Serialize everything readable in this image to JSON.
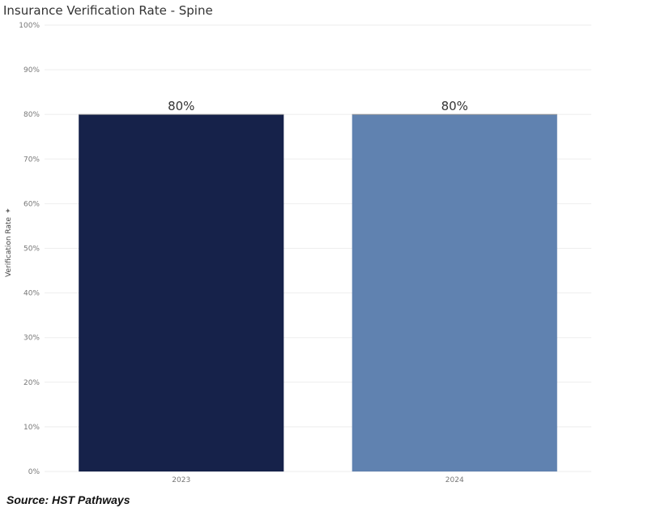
{
  "chart_data": {
    "type": "bar",
    "title": "Insurance Verification Rate - Spine",
    "xlabel": "",
    "ylabel": "Verification Rate",
    "categories": [
      "2023",
      "2024"
    ],
    "values": [
      80,
      80
    ],
    "data_labels": [
      "80%",
      "80%"
    ],
    "bar_colors": [
      "#16224a",
      "#6082b0"
    ],
    "ylim": [
      0,
      100
    ],
    "y_ticks": [
      0,
      10,
      20,
      30,
      40,
      50,
      60,
      70,
      80,
      90,
      100
    ],
    "y_tick_labels": [
      "0%",
      "10%",
      "20%",
      "30%",
      "40%",
      "50%",
      "60%",
      "70%",
      "80%",
      "90%",
      "100%"
    ],
    "grid": true,
    "legend": "none"
  },
  "icons": {
    "ylabel_sort": "sort-icon"
  },
  "footer": {
    "source": "Source: HST Pathways"
  },
  "colors": {
    "gridline": "#eeeeee",
    "tick_text": "#777777",
    "label_text": "#333333"
  }
}
